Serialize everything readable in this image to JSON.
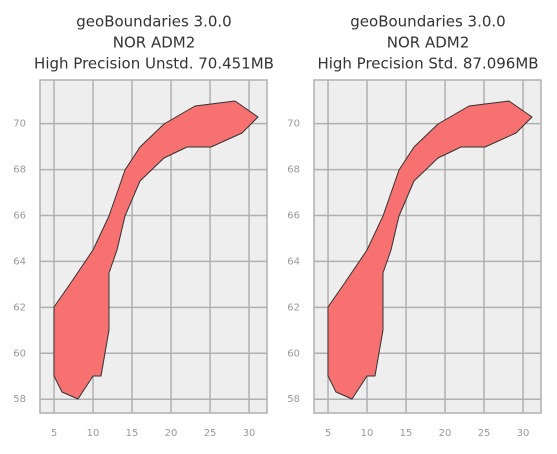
{
  "chart_data": [
    {
      "type": "map",
      "title": [
        "geoBoundaries 3.0.0",
        "NOR ADM2",
        "High Precision Unstd. 70.451MB"
      ],
      "xlim": [
        3.2,
        32.3
      ],
      "ylim": [
        57.4,
        71.9
      ],
      "xticks": [
        5,
        10,
        15,
        20,
        25,
        30
      ],
      "yticks": [
        58,
        60,
        62,
        64,
        66,
        68,
        70
      ],
      "grid": true,
      "color": "#f87171"
    },
    {
      "type": "map",
      "title": [
        "geoBoundaries 3.0.0",
        "NOR ADM2",
        "High Precision Std. 87.096MB"
      ],
      "xlim": [
        3.2,
        32.3
      ],
      "ylim": [
        57.4,
        71.9
      ],
      "xticks": [
        5,
        10,
        15,
        20,
        25,
        30
      ],
      "yticks": [
        58,
        60,
        62,
        64,
        66,
        68,
        70
      ],
      "grid": true,
      "color": "#f87171"
    }
  ]
}
